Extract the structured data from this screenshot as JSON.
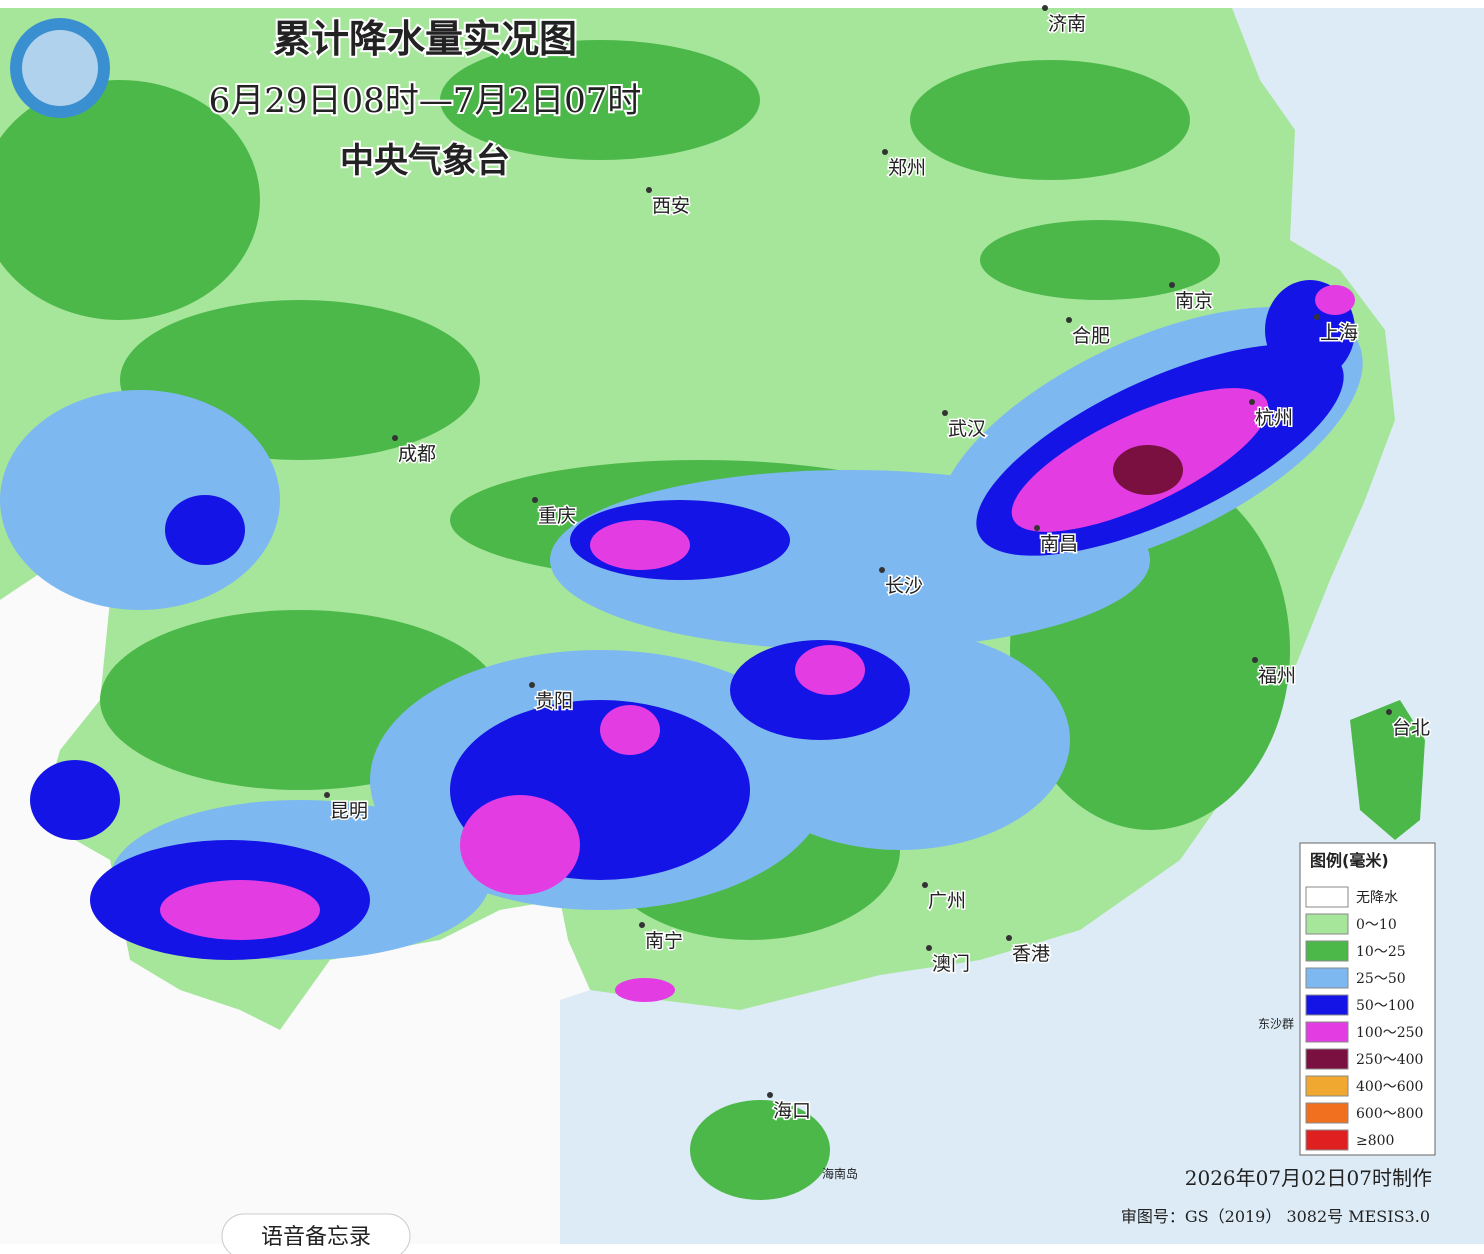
{
  "header": {
    "title": "累计降水量实况图",
    "period": "6月29日08时—7月2日07时",
    "issuer": "中央气象台"
  },
  "cities": [
    "济南",
    "郑州",
    "西安",
    "南京",
    "合肥",
    "上海",
    "成都",
    "武汉",
    "杭州",
    "重庆",
    "南昌",
    "长沙",
    "福州",
    "台北",
    "贵阳",
    "昆明",
    "广州",
    "南宁",
    "澳门",
    "香港",
    "海口"
  ],
  "places": [
    "海南岛",
    "东沙群"
  ],
  "legend": {
    "title": "图例(毫米)",
    "items": [
      {
        "label": "无降水",
        "color": "#ffffff"
      },
      {
        "label": "0～10",
        "color": "#a6e69a"
      },
      {
        "label": "10～25",
        "color": "#4cb84a"
      },
      {
        "label": "25～50",
        "color": "#7eb8f0"
      },
      {
        "label": "50～100",
        "color": "#1414e6"
      },
      {
        "label": "100～250",
        "color": "#e33ce3"
      },
      {
        "label": "250～400",
        "color": "#7a1040"
      },
      {
        "label": "400～600",
        "color": "#f0a830"
      },
      {
        "label": "600～800",
        "color": "#f07020"
      },
      {
        "label": "≥800",
        "color": "#e02020"
      }
    ]
  },
  "footer": {
    "made": "2026年07月02日07时制作",
    "approval": "审图号：GS（2019） 3082号 MESIS3.0"
  },
  "voice_memo": "语音备忘录"
}
